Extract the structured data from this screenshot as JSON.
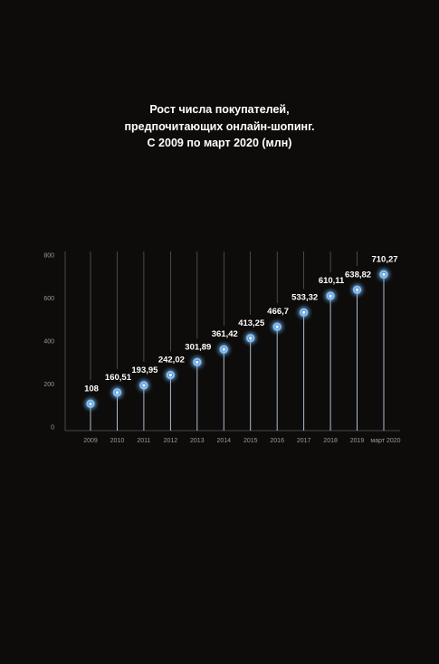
{
  "title_lines": [
    "Рост числа покупателей,",
    "предпочитающих онлайн-шопинг.",
    "С 2009 по март 2020 (млн)"
  ],
  "colors": {
    "background": "#0d0c0a",
    "accent": "#3d8bff",
    "glow": "#1f5bff",
    "text": "#ffffff",
    "axis_text": "#9a9a9a",
    "guide_line": "#8a8a8a"
  },
  "chart_data": {
    "type": "bar",
    "title": "Рост числа покупателей, предпочитающих онлайн-шопинг. С 2009 по март 2020 (млн)",
    "xlabel": "",
    "ylabel": "",
    "ylim": [
      0,
      800
    ],
    "yticks": [
      0,
      200,
      400,
      600,
      800
    ],
    "ytick_labels": [
      "0",
      "200",
      "400",
      "600",
      "800"
    ],
    "categories": [
      "2009",
      "2010",
      "2011",
      "2012",
      "2013",
      "2014",
      "2015",
      "2016",
      "2017",
      "2018",
      "2019",
      "март 2020"
    ],
    "values": [
      108,
      160.51,
      193.95,
      242.02,
      301.89,
      361.42,
      413.25,
      466.7,
      533.32,
      610.11,
      638.82,
      710.27
    ],
    "value_labels": [
      "108",
      "160,51",
      "193,95",
      "242,02",
      "301,89",
      "361,42",
      "413,25",
      "466,7",
      "533,32",
      "610,11",
      "638,82",
      "710,27"
    ],
    "grid": false,
    "legend": "none"
  }
}
